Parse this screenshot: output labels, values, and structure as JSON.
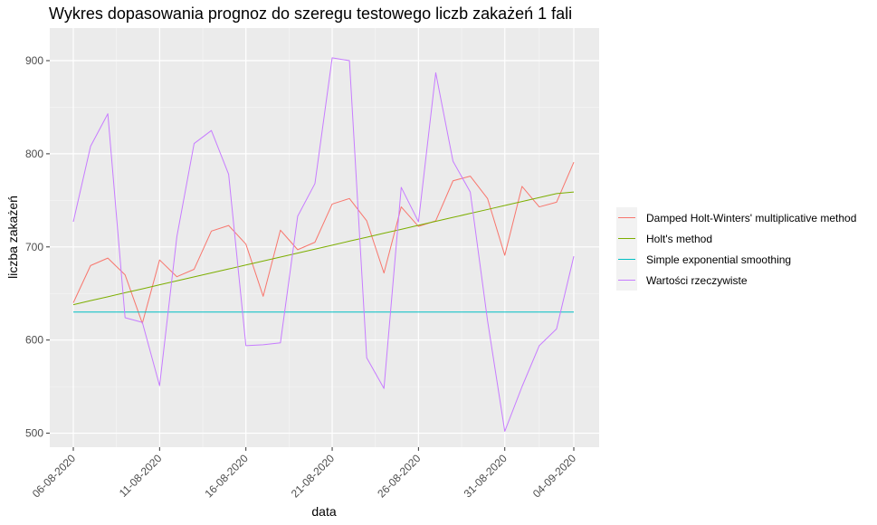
{
  "chart_data": {
    "type": "line",
    "title": "Wykres dopasowania prognoz do szeregu testowego liczb zakażeń 1 fali",
    "xlabel": "data",
    "ylabel": "liczba zakażeń",
    "x": [
      "06-08-2020",
      "07-08-2020",
      "08-08-2020",
      "09-08-2020",
      "10-08-2020",
      "11-08-2020",
      "12-08-2020",
      "13-08-2020",
      "14-08-2020",
      "15-08-2020",
      "16-08-2020",
      "17-08-2020",
      "18-08-2020",
      "19-08-2020",
      "20-08-2020",
      "21-08-2020",
      "22-08-2020",
      "23-08-2020",
      "24-08-2020",
      "25-08-2020",
      "26-08-2020",
      "27-08-2020",
      "28-08-2020",
      "29-08-2020",
      "30-08-2020",
      "31-08-2020",
      "01-09-2020",
      "02-09-2020",
      "03-09-2020",
      "04-09-2020"
    ],
    "x_ticks": [
      "06-08-2020",
      "11-08-2020",
      "16-08-2020",
      "21-08-2020",
      "26-08-2020",
      "31-08-2020",
      "04-09-2020"
    ],
    "x_tick_index": [
      0,
      5,
      10,
      15,
      20,
      25,
      29
    ],
    "ylim": [
      485,
      935
    ],
    "y_ticks": [
      500,
      600,
      700,
      800,
      900
    ],
    "grid": true,
    "legend_position": "right",
    "series": [
      {
        "name": "Damped Holt-Winters' multiplicative method",
        "color": "#F8766D",
        "values": [
          640,
          680,
          688,
          670,
          618,
          686,
          668,
          676,
          717,
          723,
          703,
          647,
          718,
          697,
          705,
          746,
          752,
          728,
          672,
          743,
          722,
          728,
          771,
          776,
          752,
          691,
          765,
          743,
          748,
          791
        ]
      },
      {
        "name": "Holt's method",
        "color": "#7CAE00",
        "values": [
          638,
          642.3,
          646.5,
          650.8,
          655,
          659.3,
          663.6,
          667.8,
          672.1,
          676.3,
          680.6,
          684.9,
          689.1,
          693.4,
          697.6,
          701.9,
          706.2,
          710.4,
          714.7,
          718.9,
          723.2,
          727.5,
          731.7,
          736,
          740.2,
          744.5,
          748.8,
          753,
          757.3,
          759
        ]
      },
      {
        "name": "Simple exponential smoothing",
        "color": "#00BFC4",
        "values": [
          630,
          630,
          630,
          630,
          630,
          630,
          630,
          630,
          630,
          630,
          630,
          630,
          630,
          630,
          630,
          630,
          630,
          630,
          630,
          630,
          630,
          630,
          630,
          630,
          630,
          630,
          630,
          630,
          630,
          630
        ]
      },
      {
        "name": "Wartości rzeczywiste",
        "color": "#C77CFF",
        "values": [
          727,
          808,
          843,
          624,
          619,
          551,
          711,
          811,
          825,
          778,
          594,
          595,
          597,
          733,
          768,
          903,
          900,
          581,
          548,
          764,
          727,
          887,
          792,
          759,
          621,
          502,
          550,
          594,
          612,
          690
        ]
      }
    ]
  }
}
